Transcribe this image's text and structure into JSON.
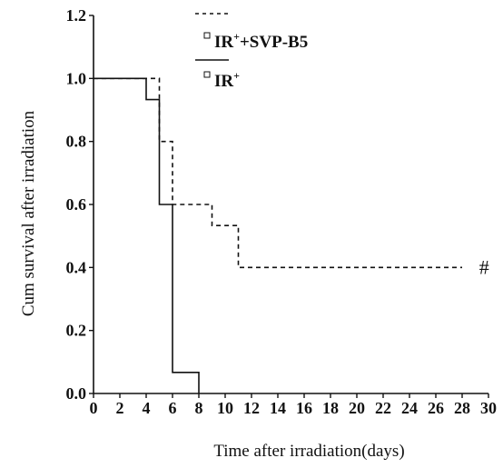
{
  "chart_data": {
    "type": "line",
    "subtype": "kaplan-meier-step",
    "xlabel": "Time after irradiation(days)",
    "ylabel": "Cum survival after irradiation",
    "xlim": [
      0,
      30
    ],
    "ylim": [
      0.0,
      1.2
    ],
    "x_ticks": [
      "0",
      "2",
      "4",
      "6",
      "8",
      "10",
      "12",
      "14",
      "16",
      "18",
      "20",
      "22",
      "24",
      "26",
      "28",
      "30"
    ],
    "y_ticks": [
      "0.0",
      "0.2",
      "0.4",
      "0.6",
      "0.8",
      "1.0",
      "1.2"
    ],
    "grid": false,
    "legend_position": "top-right",
    "series": [
      {
        "name_base": "IR",
        "name_sup": "+",
        "name_tail": "+SVP-B5",
        "line_style": "dashed",
        "color": "#111111",
        "x": [
          0,
          5,
          5,
          6,
          6,
          9,
          9,
          11,
          11,
          28
        ],
        "y": [
          1.0,
          1.0,
          0.8,
          0.8,
          0.6,
          0.6,
          0.533,
          0.533,
          0.4,
          0.4
        ]
      },
      {
        "name_base": "IR",
        "name_sup": "+",
        "name_tail": "",
        "line_style": "solid",
        "color": "#111111",
        "x": [
          0,
          4,
          4,
          5,
          5,
          6,
          6,
          8,
          8
        ],
        "y": [
          1.0,
          1.0,
          0.933,
          0.933,
          0.6,
          0.6,
          0.067,
          0.067,
          0.0
        ]
      }
    ],
    "annotations": [
      {
        "text": "#",
        "x": 28.6,
        "y": 0.4
      }
    ]
  }
}
